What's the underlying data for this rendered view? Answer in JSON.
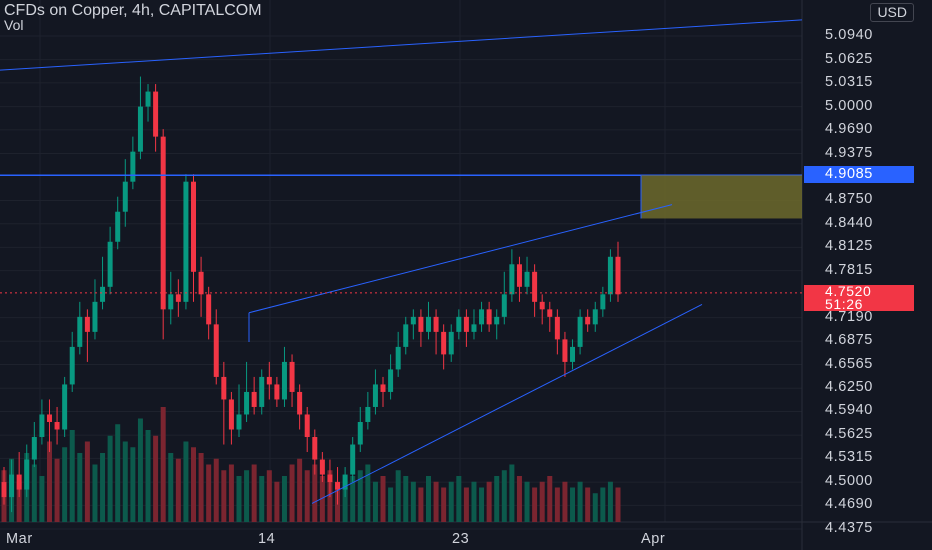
{
  "header": {
    "title": "CFDs on Copper, 4h, CAPITALCOM",
    "volume_label": "Vol",
    "currency": "USD"
  },
  "price_axis": {
    "ticks": [
      "5.0940",
      "5.0625",
      "5.0315",
      "5.0000",
      "4.9690",
      "4.9375",
      "4.8750",
      "4.8440",
      "4.8125",
      "4.7815",
      "4.7190",
      "4.6875",
      "4.6565",
      "4.6250",
      "4.5940",
      "4.5625",
      "4.5315",
      "4.5000",
      "4.4690",
      "4.4375"
    ],
    "marked_level": "4.9085",
    "last_price": "4.7520",
    "countdown": "51:26"
  },
  "time_axis": {
    "labels": [
      "Mar",
      "14",
      "23",
      "Apr"
    ]
  },
  "colors": {
    "up": "#089981",
    "down": "#f23645",
    "line": "#2962ff",
    "zone": "#6d6a2c",
    "bg": "#131722"
  },
  "chart_data": {
    "type": "candlestick",
    "symbol": "CFDs on Copper",
    "interval": "4h",
    "ylim": [
      4.4375,
      5.094
    ],
    "last_price": 4.752,
    "horizontal_level": 4.9085,
    "zone": {
      "top": 4.9085,
      "bottom": 4.851
    },
    "candles": [
      [
        4.5,
        4.48,
        4.52,
        4.47
      ],
      [
        4.48,
        4.51,
        4.53,
        4.46
      ],
      [
        4.51,
        4.49,
        4.54,
        4.48
      ],
      [
        4.49,
        4.53,
        4.55,
        4.48
      ],
      [
        4.53,
        4.56,
        4.58,
        4.52
      ],
      [
        4.56,
        4.59,
        4.61,
        4.55
      ],
      [
        4.59,
        4.58,
        4.61,
        4.54
      ],
      [
        4.58,
        4.57,
        4.6,
        4.55
      ],
      [
        4.57,
        4.63,
        4.64,
        4.56
      ],
      [
        4.63,
        4.68,
        4.7,
        4.62
      ],
      [
        4.68,
        4.72,
        4.74,
        4.67
      ],
      [
        4.72,
        4.7,
        4.73,
        4.66
      ],
      [
        4.7,
        4.74,
        4.77,
        4.69
      ],
      [
        4.74,
        4.76,
        4.8,
        4.73
      ],
      [
        4.76,
        4.82,
        4.84,
        4.75
      ],
      [
        4.82,
        4.86,
        4.88,
        4.81
      ],
      [
        4.86,
        4.9,
        4.93,
        4.84
      ],
      [
        4.9,
        4.94,
        4.96,
        4.89
      ],
      [
        4.94,
        5.0,
        5.04,
        4.93
      ],
      [
        5.0,
        5.02,
        5.03,
        4.98
      ],
      [
        5.02,
        4.96,
        5.03,
        4.94
      ],
      [
        4.96,
        4.73,
        4.97,
        4.69
      ],
      [
        4.73,
        4.75,
        4.78,
        4.71
      ],
      [
        4.75,
        4.74,
        4.77,
        4.72
      ],
      [
        4.74,
        4.9,
        4.91,
        4.73
      ],
      [
        4.9,
        4.78,
        4.91,
        4.74
      ],
      [
        4.78,
        4.75,
        4.8,
        4.72
      ],
      [
        4.75,
        4.71,
        4.76,
        4.69
      ],
      [
        4.71,
        4.64,
        4.73,
        4.63
      ],
      [
        4.64,
        4.61,
        4.66,
        4.55
      ],
      [
        4.61,
        4.57,
        4.62,
        4.55
      ],
      [
        4.57,
        4.59,
        4.63,
        4.56
      ],
      [
        4.59,
        4.62,
        4.66,
        4.58
      ],
      [
        4.62,
        4.6,
        4.64,
        4.59
      ],
      [
        4.6,
        4.64,
        4.65,
        4.59
      ],
      [
        4.64,
        4.63,
        4.66,
        4.61
      ],
      [
        4.63,
        4.61,
        4.64,
        4.6
      ],
      [
        4.61,
        4.66,
        4.68,
        4.6
      ],
      [
        4.66,
        4.62,
        4.67,
        4.6
      ],
      [
        4.62,
        4.59,
        4.63,
        4.57
      ],
      [
        4.59,
        4.56,
        4.6,
        4.54
      ],
      [
        4.56,
        4.53,
        4.57,
        4.51
      ],
      [
        4.53,
        4.51,
        4.54,
        4.5
      ],
      [
        4.51,
        4.5,
        4.53,
        4.48
      ],
      [
        4.5,
        4.49,
        4.52,
        4.47
      ],
      [
        4.49,
        4.51,
        4.52,
        4.48
      ],
      [
        4.51,
        4.55,
        4.56,
        4.5
      ],
      [
        4.55,
        4.58,
        4.6,
        4.54
      ],
      [
        4.58,
        4.6,
        4.62,
        4.57
      ],
      [
        4.6,
        4.63,
        4.65,
        4.59
      ],
      [
        4.63,
        4.62,
        4.64,
        4.6
      ],
      [
        4.62,
        4.65,
        4.67,
        4.61
      ],
      [
        4.65,
        4.68,
        4.7,
        4.64
      ],
      [
        4.68,
        4.71,
        4.72,
        4.67
      ],
      [
        4.71,
        4.72,
        4.73,
        4.69
      ],
      [
        4.72,
        4.7,
        4.73,
        4.68
      ],
      [
        4.7,
        4.72,
        4.74,
        4.69
      ],
      [
        4.72,
        4.7,
        4.73,
        4.67
      ],
      [
        4.7,
        4.67,
        4.71,
        4.65
      ],
      [
        4.67,
        4.7,
        4.71,
        4.66
      ],
      [
        4.7,
        4.72,
        4.73,
        4.69
      ],
      [
        4.72,
        4.7,
        4.73,
        4.68
      ],
      [
        4.7,
        4.71,
        4.73,
        4.69
      ],
      [
        4.71,
        4.73,
        4.74,
        4.7
      ],
      [
        4.73,
        4.71,
        4.74,
        4.7
      ],
      [
        4.71,
        4.72,
        4.73,
        4.69
      ],
      [
        4.72,
        4.75,
        4.78,
        4.71
      ],
      [
        4.75,
        4.79,
        4.81,
        4.74
      ],
      [
        4.79,
        4.76,
        4.8,
        4.74
      ],
      [
        4.76,
        4.78,
        4.8,
        4.75
      ],
      [
        4.78,
        4.74,
        4.79,
        4.72
      ],
      [
        4.74,
        4.73,
        4.75,
        4.71
      ],
      [
        4.73,
        4.72,
        4.74,
        4.7
      ],
      [
        4.72,
        4.69,
        4.73,
        4.67
      ],
      [
        4.69,
        4.66,
        4.7,
        4.64
      ],
      [
        4.66,
        4.68,
        4.69,
        4.65
      ],
      [
        4.68,
        4.72,
        4.73,
        4.67
      ],
      [
        4.72,
        4.71,
        4.73,
        4.7
      ],
      [
        4.71,
        4.73,
        4.74,
        4.7
      ],
      [
        4.73,
        4.75,
        4.76,
        4.72
      ],
      [
        4.75,
        4.8,
        4.81,
        4.74
      ],
      [
        4.8,
        4.75,
        4.82,
        4.74
      ]
    ],
    "volume_bars_relative": [
      0.45,
      0.55,
      0.35,
      0.6,
      0.5,
      0.4,
      0.7,
      0.55,
      0.65,
      0.8,
      0.6,
      0.7,
      0.5,
      0.6,
      0.75,
      0.85,
      0.7,
      0.65,
      0.9,
      0.8,
      0.75,
      1.0,
      0.6,
      0.55,
      0.7,
      0.65,
      0.6,
      0.5,
      0.55,
      0.45,
      0.5,
      0.4,
      0.45,
      0.5,
      0.4,
      0.45,
      0.35,
      0.4,
      0.5,
      0.55,
      0.45,
      0.5,
      0.4,
      0.45,
      0.35,
      0.3,
      0.4,
      0.45,
      0.5,
      0.35,
      0.4,
      0.3,
      0.45,
      0.4,
      0.35,
      0.3,
      0.4,
      0.35,
      0.3,
      0.35,
      0.4,
      0.3,
      0.35,
      0.3,
      0.35,
      0.4,
      0.45,
      0.5,
      0.4,
      0.35,
      0.3,
      0.35,
      0.4,
      0.3,
      0.35,
      0.3,
      0.35,
      0.3,
      0.25,
      0.3,
      0.35,
      0.3
    ]
  }
}
